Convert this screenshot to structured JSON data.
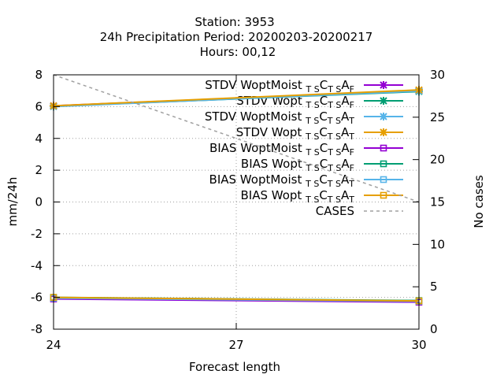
{
  "chart_data": {
    "type": "line",
    "title": [
      "Station:     3953",
      "24h Precipitation    Period: 20200203-20200217",
      "Hours:  00,12"
    ],
    "xlabel": "Forecast length",
    "ylabel": "mm/24h",
    "y2label": "No cases",
    "xlim": [
      24,
      30
    ],
    "ylim": [
      -8,
      8
    ],
    "y2lim": [
      0,
      30
    ],
    "xticks": [
      "24",
      "27",
      "30"
    ],
    "yticks": [
      "-8",
      "-6",
      "-4",
      "-2",
      "0",
      "2",
      "4",
      "6",
      "8"
    ],
    "y2ticks": [
      "0",
      "5",
      "10",
      "15",
      "20",
      "25",
      "30"
    ],
    "grid": true,
    "legend_position": "top-right",
    "x": [
      24,
      30
    ],
    "series": [
      {
        "name": "STDV WoptMoist",
        "sub1": "T S",
        "mid": "C",
        "sub2": "T S",
        "a": "A",
        "sub3": "F",
        "values": [
          6.05,
          7.0
        ],
        "color": "#9400d3",
        "marker": "x",
        "dash": false,
        "axis": "y"
      },
      {
        "name": "STDV Wopt",
        "sub1": "T S",
        "mid": "C",
        "sub2": "T S",
        "a": "A",
        "sub3": "F",
        "values": [
          6.02,
          6.95
        ],
        "color": "#009e73",
        "marker": "x",
        "dash": false,
        "axis": "y"
      },
      {
        "name": "STDV WoptMoist",
        "sub1": "T S",
        "mid": "C",
        "sub2": "T S",
        "a": "A",
        "sub3": "T",
        "values": [
          6.0,
          6.98
        ],
        "color": "#56b4e9",
        "marker": "x",
        "dash": false,
        "axis": "y"
      },
      {
        "name": "STDV Wopt",
        "sub1": "T S",
        "mid": "C",
        "sub2": "T S",
        "a": "A",
        "sub3": "T",
        "values": [
          6.05,
          7.05
        ],
        "color": "#e69f00",
        "marker": "x",
        "dash": false,
        "axis": "y"
      },
      {
        "name": "BIAS WoptMoist",
        "sub1": "T S",
        "mid": "C",
        "sub2": "T S",
        "a": "A",
        "sub3": "F",
        "values": [
          -6.1,
          -6.3
        ],
        "color": "#9400d3",
        "marker": "square",
        "dash": false,
        "axis": "y"
      },
      {
        "name": "BIAS Wopt",
        "sub1": "T S",
        "mid": "C",
        "sub2": "T S",
        "a": "A",
        "sub3": "F",
        "values": [
          -6.0,
          -6.2
        ],
        "color": "#009e73",
        "marker": "square",
        "dash": false,
        "axis": "y"
      },
      {
        "name": "BIAS WoptMoist",
        "sub1": "T S",
        "mid": "C",
        "sub2": "T S",
        "a": "A",
        "sub3": "T",
        "values": [
          -6.05,
          -6.25
        ],
        "color": "#56b4e9",
        "marker": "square",
        "dash": false,
        "axis": "y"
      },
      {
        "name": "BIAS Wopt",
        "sub1": "T S",
        "mid": "C",
        "sub2": "T S",
        "a": "A",
        "sub3": "T",
        "values": [
          -6.0,
          -6.22
        ],
        "color": "#e69f00",
        "marker": "square",
        "dash": false,
        "axis": "y"
      },
      {
        "name": "CASES",
        "sub1": "",
        "mid": "",
        "sub2": "",
        "a": "",
        "sub3": "",
        "values": [
          30,
          15
        ],
        "color": "#a0a0a0",
        "marker": "none",
        "dash": true,
        "axis": "y2"
      }
    ]
  }
}
